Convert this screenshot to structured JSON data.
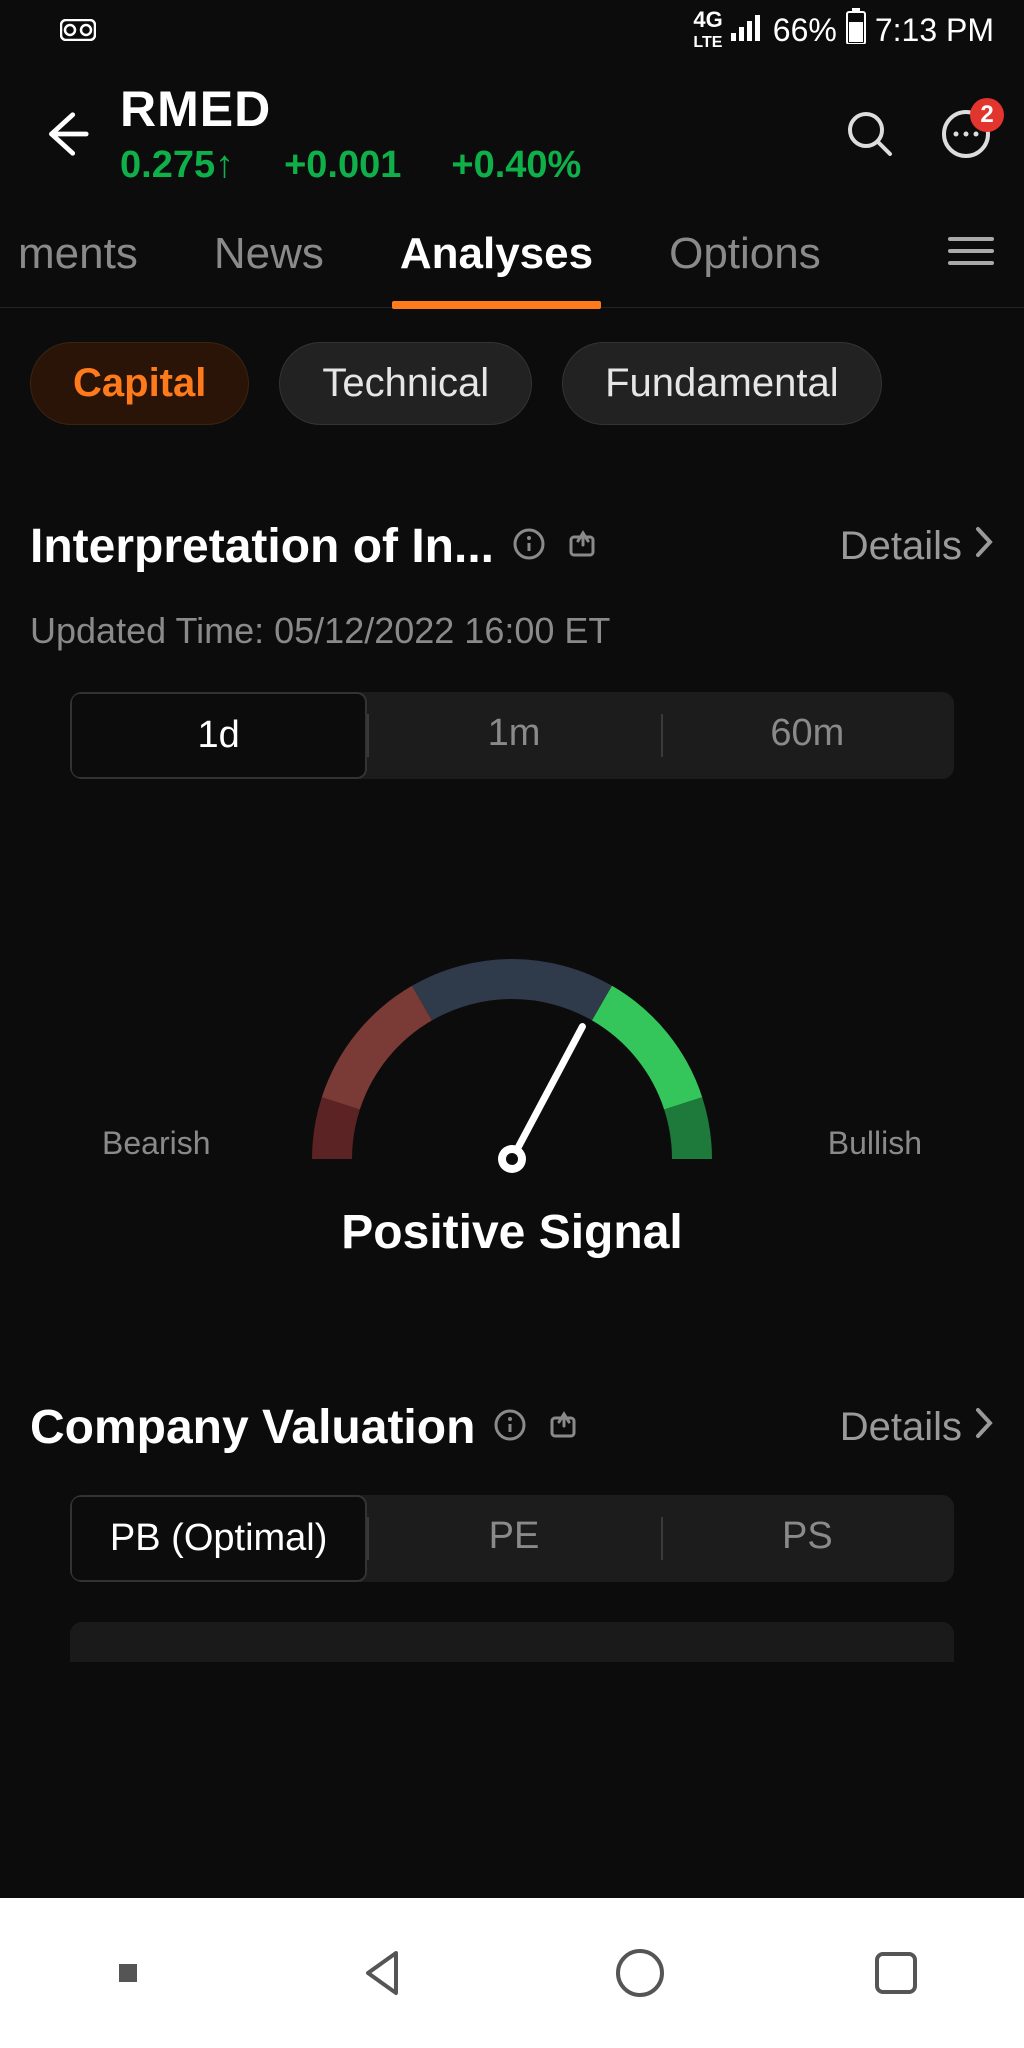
{
  "status": {
    "network": "4G LTE",
    "battery_pct": "66%",
    "time": "7:13 PM"
  },
  "header": {
    "ticker": "RMED",
    "price": "0.275",
    "change_abs": "+0.001",
    "change_pct": "+0.40%",
    "notif_badge": "2",
    "price_color": "#0fb04a"
  },
  "tabs": {
    "items": [
      "ments",
      "News",
      "Analyses",
      "Options"
    ],
    "active_index": 2
  },
  "pills": {
    "items": [
      "Capital",
      "Technical",
      "Fundamental"
    ],
    "active_index": 0,
    "active_color": "#ff7a1a"
  },
  "interpretation": {
    "title": "Interpretation of In...",
    "details_label": "Details",
    "updated_label": "Updated Time: 05/12/2022 16:00 ET",
    "segments": [
      "1d",
      "1m",
      "60m"
    ],
    "active_segment": 0,
    "gauge": {
      "type": "gauge",
      "left_label": "Bearish",
      "right_label": "Bullish",
      "needle_angle_deg": 28,
      "arc_colors": {
        "dark_red": "#5b2323",
        "red": "#7a3a36",
        "neutral": "#2f3a4a",
        "green": "#34c65a",
        "dark_green": "#1e7a3a"
      },
      "needle_color": "#ffffff"
    },
    "signal_text": "Positive Signal"
  },
  "valuation": {
    "title": "Company Valuation",
    "details_label": "Details",
    "segments": [
      "PB (Optimal)",
      "PE",
      "PS"
    ],
    "active_segment": 0
  },
  "colors": {
    "background": "#0c0c0c",
    "accent": "#ff7a1a",
    "positive": "#0fb04a",
    "muted": "#8a8a8a"
  }
}
